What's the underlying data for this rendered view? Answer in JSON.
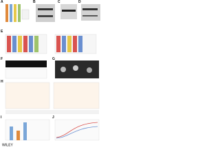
{
  "figure": {
    "panels": [
      {
        "label": "A"
      },
      {
        "label": "B"
      },
      {
        "label": "C"
      },
      {
        "label": "D"
      },
      {
        "label": "E"
      },
      {
        "label": "F"
      },
      {
        "label": "G"
      },
      {
        "label": "H"
      },
      {
        "label": "I"
      },
      {
        "label": "J"
      }
    ],
    "footer": "WILEY"
  }
}
